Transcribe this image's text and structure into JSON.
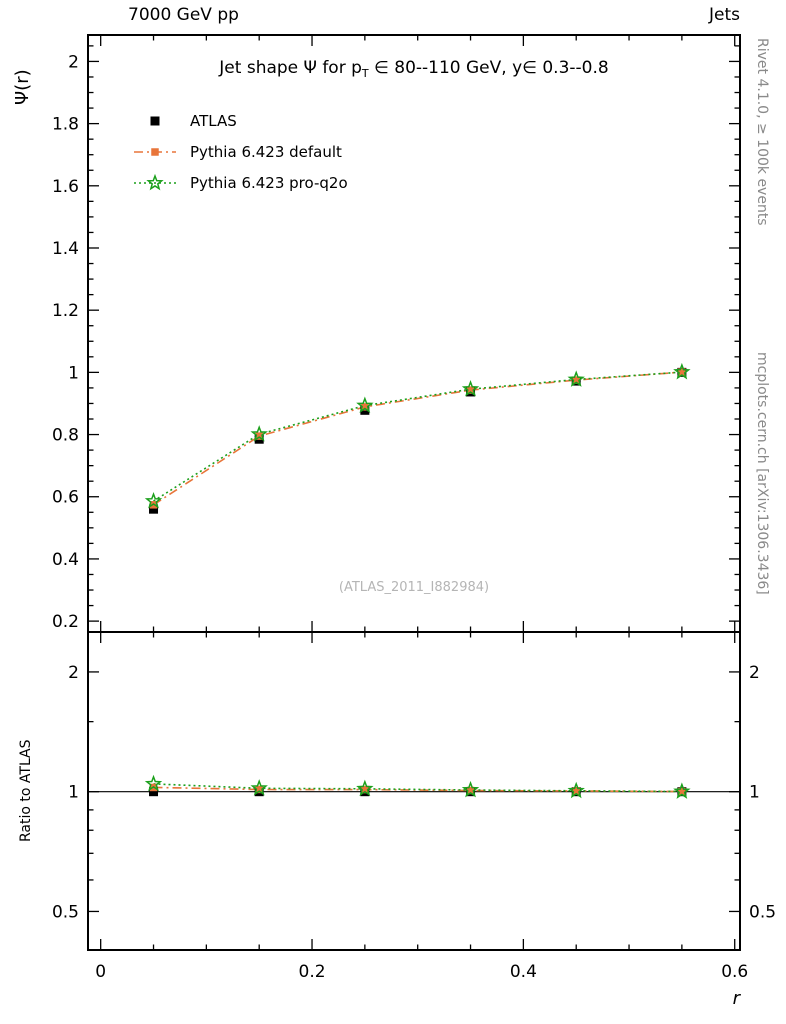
{
  "header": {
    "left": "7000 GeV pp",
    "right": "Jets"
  },
  "plot_title": {
    "part1": "Jet shape Ψ for p",
    "sub": "T",
    "part2": " ∈ 80--110 GeV, y∈ 0.3--0.8"
  },
  "watermark": "(ATLAS_2011_I882984)",
  "side_notes": {
    "top": "Rivet 4.1.0, ≥ 100k events",
    "bottom": "mcplots.cern.ch [arXiv:1306.3436]"
  },
  "axis_labels": {
    "main_y": "Ψ(r)",
    "ratio_y": "Ratio to ATLAS",
    "x": "r"
  },
  "chart_data": {
    "type": "line",
    "title": "Jet shape Ψ for pT ∈ 80--110 GeV, y ∈ 0.3--0.8",
    "xlabel": "r",
    "ylabel": "Ψ(r)",
    "panels": [
      "main",
      "ratio"
    ],
    "xlim": [
      -0.012,
      0.605
    ],
    "main_ylim": [
      0.165,
      2.085
    ],
    "ratio_ylim": [
      0.4,
      2.52
    ],
    "ratio_scale": "log",
    "main_scale": "linear",
    "grid": false,
    "legend_position": "top-left-inside",
    "x": [
      0.05,
      0.15,
      0.25,
      0.35,
      0.45,
      0.55
    ],
    "series": [
      {
        "name": "ATLAS",
        "color": "#000000",
        "marker": "square",
        "fill": "filled",
        "line": "none",
        "msize": 9,
        "values": [
          0.56,
          0.785,
          0.878,
          0.937,
          0.972,
          1.0
        ],
        "ratio": [
          1.0,
          1.0,
          1.0,
          1.0,
          1.0,
          1.0
        ]
      },
      {
        "name": "Pythia 6.423 default",
        "color": "#e8753a",
        "marker": "square",
        "fill": "filled",
        "line": "dashdot",
        "msize": 7.5,
        "values": [
          0.574,
          0.795,
          0.889,
          0.943,
          0.975,
          1.001
        ],
        "ratio": [
          1.025,
          1.013,
          1.012,
          1.007,
          1.004,
          1.001
        ]
      },
      {
        "name": "Pythia 6.423 pro-q2o",
        "color": "#1ca01c",
        "marker": "star",
        "fill": "open",
        "line": "dotted",
        "msize": 7,
        "values": [
          0.586,
          0.801,
          0.893,
          0.946,
          0.977,
          1.001
        ],
        "ratio": [
          1.046,
          1.02,
          1.017,
          1.01,
          1.005,
          1.001
        ]
      }
    ],
    "xticks": {
      "major": [
        0,
        0.2,
        0.4,
        0.6
      ],
      "labels": [
        "0",
        "0.2",
        "0.4",
        "0.6"
      ],
      "minor_step": 0.05
    },
    "main_yticks": {
      "major": [
        0.2,
        0.4,
        0.6,
        0.8,
        1,
        1.2,
        1.4,
        1.6,
        1.8,
        2
      ],
      "labels": [
        "0.2",
        "0.4",
        "0.6",
        "0.8",
        "1",
        "1.2",
        "1.4",
        "1.6",
        "1.8",
        "2"
      ],
      "minor_step": 0.05
    },
    "ratio_yticks": {
      "major": [
        0.5,
        1,
        2
      ],
      "labels": [
        "0.5",
        "1",
        "2"
      ],
      "minors": [
        0.6,
        0.7,
        0.8,
        0.9,
        1.5
      ]
    },
    "reference_line": 1
  }
}
